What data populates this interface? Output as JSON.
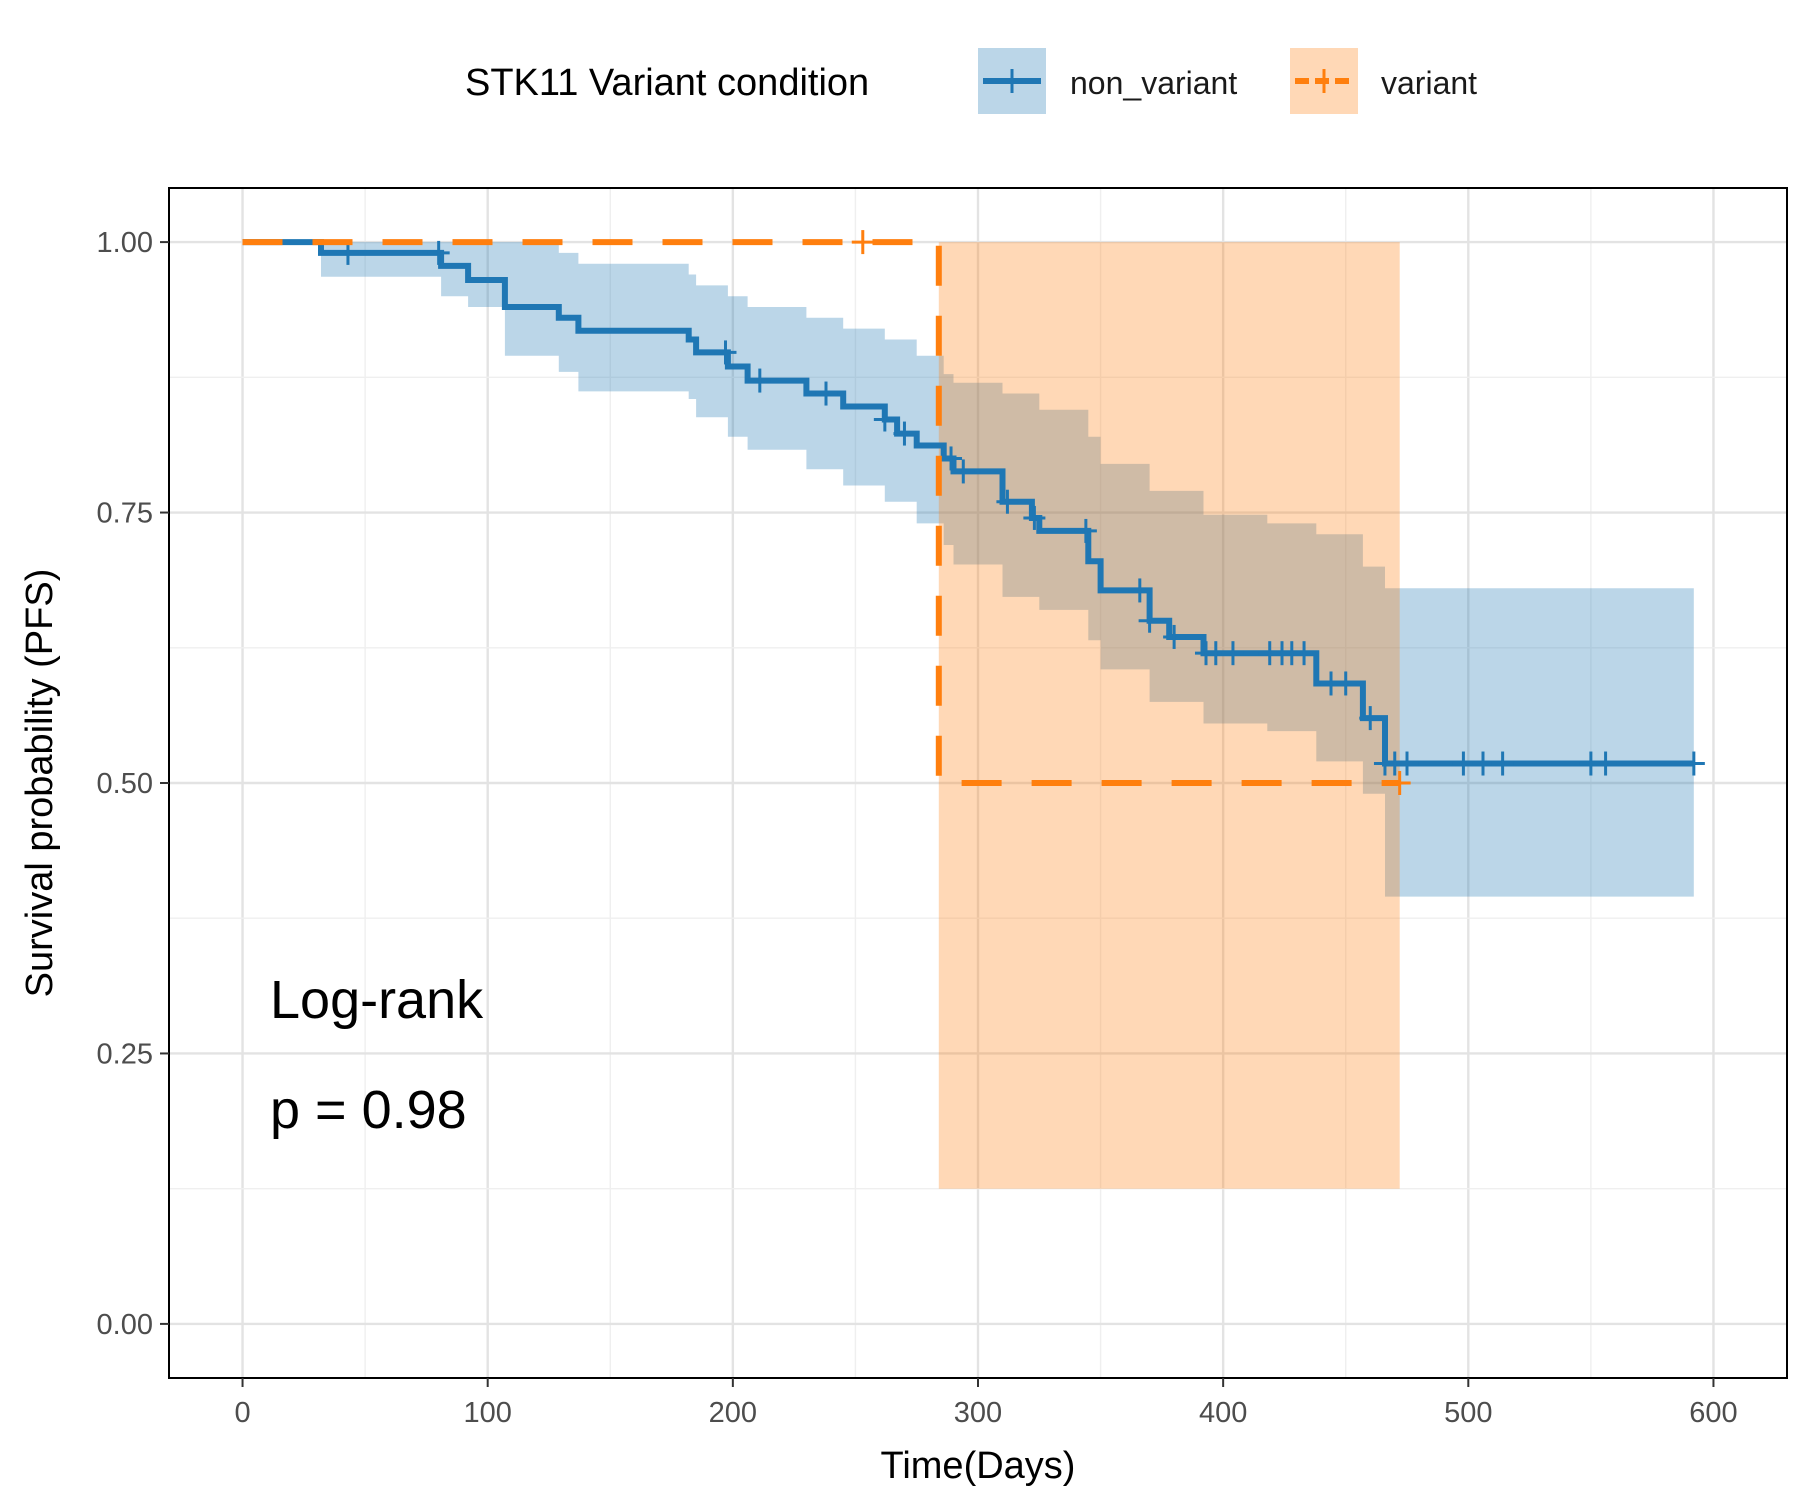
{
  "legend": {
    "title": "STK11 Variant condition",
    "items": [
      {
        "label": "non_variant",
        "color": "#1F77B4"
      },
      {
        "label": "variant",
        "color": "#FF7F0E"
      }
    ]
  },
  "annotation": {
    "line1": "Log-rank",
    "line2": "p = 0.98"
  },
  "chart_data": {
    "type": "line",
    "subtype": "kaplan-meier",
    "xlabel": "Time(Days)",
    "ylabel": "Survival probability (PFS)",
    "xlim": [
      -30,
      630
    ],
    "ylim": [
      -0.05,
      1.05
    ],
    "xticks": [
      0,
      100,
      200,
      300,
      400,
      500,
      600
    ],
    "xtick_labels": [
      "0",
      "100",
      "200",
      "300",
      "400",
      "500",
      "600"
    ],
    "yticks": [
      0,
      0.25,
      0.5,
      0.75,
      1
    ],
    "ytick_labels": [
      "0.00",
      "0.25",
      "0.50",
      "0.75",
      "1.00"
    ],
    "grid": true,
    "legend_position": "top",
    "series": [
      {
        "name": "non_variant",
        "color": "#1F77B4",
        "fill": "#1F77B4",
        "line_style": "solid",
        "steps": [
          [
            0,
            1.0
          ],
          [
            32,
            0.99
          ],
          [
            81,
            0.978
          ],
          [
            92,
            0.965
          ],
          [
            107,
            0.94
          ],
          [
            129,
            0.93
          ],
          [
            137,
            0.918
          ],
          [
            182,
            0.91
          ],
          [
            185,
            0.898
          ],
          [
            198,
            0.885
          ],
          [
            206,
            0.872
          ],
          [
            230,
            0.86
          ],
          [
            245,
            0.848
          ],
          [
            262,
            0.836
          ],
          [
            267,
            0.823
          ],
          [
            275,
            0.812
          ],
          [
            286,
            0.8
          ],
          [
            290,
            0.788
          ],
          [
            310,
            0.76
          ],
          [
            322,
            0.745
          ],
          [
            325,
            0.733
          ],
          [
            345,
            0.705
          ],
          [
            350,
            0.678
          ],
          [
            370,
            0.65
          ],
          [
            378,
            0.635
          ],
          [
            392,
            0.62
          ],
          [
            438,
            0.592
          ],
          [
            457,
            0.56
          ],
          [
            466,
            0.518
          ],
          [
            592,
            0.518
          ]
        ],
        "ci_steps": [
          [
            0,
            1.0,
            1.0
          ],
          [
            32,
            1.0,
            0.968
          ],
          [
            81,
            1.0,
            0.95
          ],
          [
            92,
            1.0,
            0.94
          ],
          [
            107,
            1.0,
            0.895
          ],
          [
            129,
            0.99,
            0.88
          ],
          [
            137,
            0.98,
            0.862
          ],
          [
            182,
            0.97,
            0.855
          ],
          [
            185,
            0.96,
            0.838
          ],
          [
            198,
            0.95,
            0.82
          ],
          [
            206,
            0.94,
            0.808
          ],
          [
            230,
            0.93,
            0.79
          ],
          [
            245,
            0.92,
            0.775
          ],
          [
            262,
            0.91,
            0.76
          ],
          [
            275,
            0.895,
            0.74
          ],
          [
            286,
            0.878,
            0.72
          ],
          [
            290,
            0.87,
            0.702
          ],
          [
            310,
            0.86,
            0.672
          ],
          [
            325,
            0.845,
            0.66
          ],
          [
            345,
            0.82,
            0.632
          ],
          [
            350,
            0.795,
            0.605
          ],
          [
            370,
            0.77,
            0.575
          ],
          [
            392,
            0.748,
            0.555
          ],
          [
            418,
            0.74,
            0.548
          ],
          [
            438,
            0.73,
            0.52
          ],
          [
            457,
            0.7,
            0.49
          ],
          [
            466,
            0.68,
            0.395
          ],
          [
            592,
            0.68,
            0.395
          ]
        ],
        "censor_times": [
          43,
          80,
          197,
          211,
          238,
          262,
          270,
          289,
          294,
          312,
          323,
          344,
          366,
          370,
          380,
          393,
          397,
          404,
          419,
          424,
          428,
          433,
          444,
          450,
          460,
          466,
          470,
          475,
          498,
          506,
          514,
          550,
          556,
          592
        ]
      },
      {
        "name": "variant",
        "color": "#FF7F0E",
        "fill": "#FF7F0E",
        "line_style": "dashed",
        "steps": [
          [
            0,
            1.0
          ],
          [
            284,
            0.5
          ],
          [
            472,
            0.5
          ]
        ],
        "ci_steps": [
          [
            284,
            1.0,
            0.125
          ],
          [
            472,
            1.0,
            0.125
          ]
        ],
        "censor_times": [
          253,
          472
        ]
      }
    ]
  }
}
